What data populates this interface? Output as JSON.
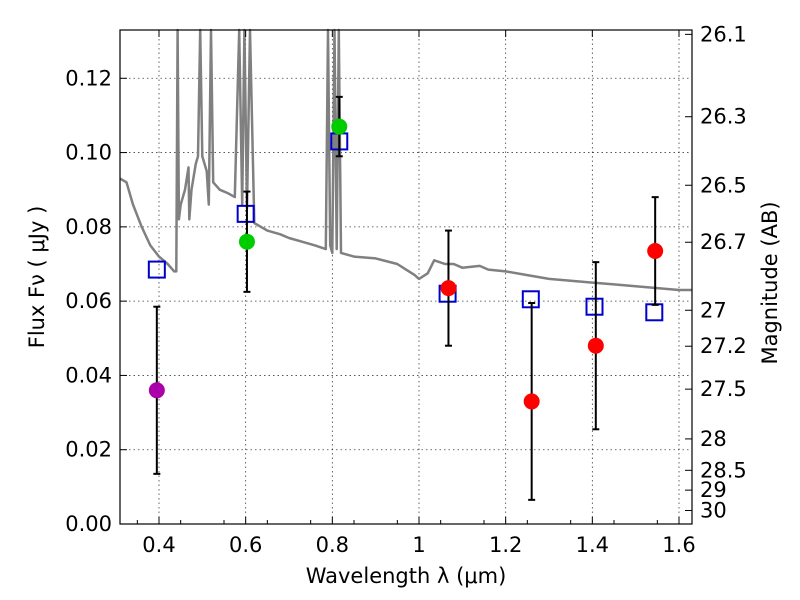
{
  "chart_data": {
    "type": "scatter",
    "xlabel": "Wavelength  λ (μm)",
    "ylabel": "Flux  Fν  ( μJy )",
    "y2label": "Magnitude (AB)",
    "xlim": [
      0.31,
      1.63
    ],
    "ylim": [
      0.0,
      0.133
    ],
    "x_ticks": [
      0.4,
      0.6,
      0.8,
      1.0,
      1.2,
      1.4,
      1.6
    ],
    "x_tick_labels": [
      "0.4",
      "0.6",
      "0.8",
      "1",
      "1.2",
      "1.4",
      "1.6"
    ],
    "y_ticks": [
      0.0,
      0.02,
      0.04,
      0.06,
      0.08,
      0.1,
      0.12
    ],
    "y_tick_labels": [
      "0.00",
      "0.02",
      "0.04",
      "0.06",
      "0.08",
      "0.10",
      "0.12"
    ],
    "magnitude_ticks": [
      26.1,
      26.3,
      26.5,
      26.7,
      27.0,
      27.2,
      27.5,
      28.0,
      28.5,
      29.0,
      30.0
    ],
    "magnitude_tick_labels": [
      "26.1",
      "26.3",
      "26.5",
      "26.7",
      "27",
      "27.2",
      "27.5",
      "28",
      "28.5",
      "29",
      "30"
    ],
    "grid": true,
    "observed": [
      {
        "x": 0.395,
        "y": 0.036,
        "err_low": 0.0225,
        "err_high": 0.0225,
        "color": "#aa00aa"
      },
      {
        "x": 0.603,
        "y": 0.076,
        "err_low": 0.0135,
        "err_high": 0.0135,
        "color": "#00cc00"
      },
      {
        "x": 0.816,
        "y": 0.107,
        "err_low": 0.008,
        "err_high": 0.008,
        "color": "#00cc00"
      },
      {
        "x": 1.068,
        "y": 0.0635,
        "err_low": 0.0155,
        "err_high": 0.0155,
        "color": "#ff0000"
      },
      {
        "x": 1.26,
        "y": 0.033,
        "err_low": 0.0265,
        "err_high": 0.0265,
        "color": "#ff0000"
      },
      {
        "x": 1.408,
        "y": 0.048,
        "err_low": 0.0225,
        "err_high": 0.0225,
        "color": "#ff0000"
      },
      {
        "x": 1.545,
        "y": 0.0735,
        "err_low": 0.0145,
        "err_high": 0.0145,
        "color": "#ff0000"
      }
    ],
    "model_photometry": [
      {
        "x": 0.395,
        "y": 0.0685
      },
      {
        "x": 0.6,
        "y": 0.0835
      },
      {
        "x": 0.816,
        "y": 0.103
      },
      {
        "x": 1.066,
        "y": 0.062
      },
      {
        "x": 1.258,
        "y": 0.0605
      },
      {
        "x": 1.405,
        "y": 0.0585
      },
      {
        "x": 1.543,
        "y": 0.057
      }
    ],
    "model_spectrum": [
      [
        0.31,
        0.093
      ],
      [
        0.325,
        0.092
      ],
      [
        0.34,
        0.086
      ],
      [
        0.36,
        0.08
      ],
      [
        0.38,
        0.075
      ],
      [
        0.4,
        0.072
      ],
      [
        0.42,
        0.07
      ],
      [
        0.435,
        0.068
      ],
      [
        0.44,
        0.068
      ],
      [
        0.443,
        0.133
      ],
      [
        0.446,
        0.082
      ],
      [
        0.45,
        0.086
      ],
      [
        0.46,
        0.09
      ],
      [
        0.468,
        0.096
      ],
      [
        0.47,
        0.082
      ],
      [
        0.475,
        0.09
      ],
      [
        0.485,
        0.097
      ],
      [
        0.49,
        0.099
      ],
      [
        0.495,
        0.133
      ],
      [
        0.5,
        0.099
      ],
      [
        0.51,
        0.095
      ],
      [
        0.515,
        0.086
      ],
      [
        0.52,
        0.133
      ],
      [
        0.525,
        0.092
      ],
      [
        0.54,
        0.09
      ],
      [
        0.56,
        0.089
      ],
      [
        0.575,
        0.088
      ],
      [
        0.585,
        0.133
      ],
      [
        0.592,
        0.086
      ],
      [
        0.597,
        0.133
      ],
      [
        0.603,
        0.085
      ],
      [
        0.61,
        0.133
      ],
      [
        0.62,
        0.081
      ],
      [
        0.65,
        0.079
      ],
      [
        0.68,
        0.078
      ],
      [
        0.7,
        0.077
      ],
      [
        0.73,
        0.076
      ],
      [
        0.76,
        0.075
      ],
      [
        0.785,
        0.074
      ],
      [
        0.79,
        0.133
      ],
      [
        0.795,
        0.075
      ],
      [
        0.8,
        0.073
      ],
      [
        0.805,
        0.133
      ],
      [
        0.81,
        0.074
      ],
      [
        0.815,
        0.133
      ],
      [
        0.82,
        0.073
      ],
      [
        0.85,
        0.072
      ],
      [
        0.9,
        0.0715
      ],
      [
        0.95,
        0.07
      ],
      [
        0.97,
        0.0685
      ],
      [
        0.99,
        0.067
      ],
      [
        1.0,
        0.066
      ],
      [
        1.02,
        0.0675
      ],
      [
        1.035,
        0.071
      ],
      [
        1.06,
        0.07
      ],
      [
        1.08,
        0.07
      ],
      [
        1.1,
        0.069
      ],
      [
        1.14,
        0.0695
      ],
      [
        1.16,
        0.0685
      ],
      [
        1.2,
        0.068
      ],
      [
        1.25,
        0.067
      ],
      [
        1.3,
        0.066
      ],
      [
        1.35,
        0.0655
      ],
      [
        1.4,
        0.065
      ],
      [
        1.45,
        0.0645
      ],
      [
        1.5,
        0.064
      ],
      [
        1.55,
        0.0635
      ],
      [
        1.6,
        0.063
      ],
      [
        1.63,
        0.063
      ]
    ]
  }
}
